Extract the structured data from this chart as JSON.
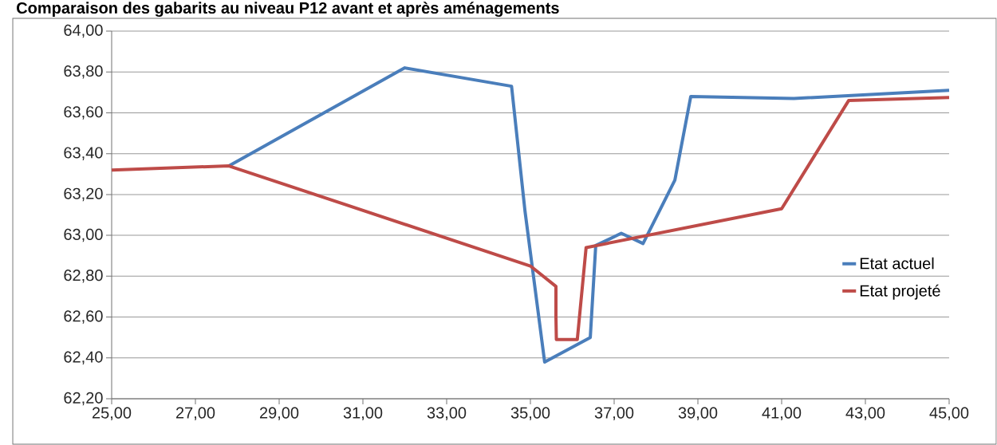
{
  "chart_data": {
    "type": "line",
    "title": "Comparaison des gabarits au niveau P12 avant et après aménagements",
    "xlim": [
      25,
      45
    ],
    "ylim": [
      62.2,
      64.0
    ],
    "xticks": [
      {
        "value": 25,
        "label": "25,00"
      },
      {
        "value": 27,
        "label": "27,00"
      },
      {
        "value": 29,
        "label": "29,00"
      },
      {
        "value": 31,
        "label": "31,00"
      },
      {
        "value": 33,
        "label": "33,00"
      },
      {
        "value": 35,
        "label": "35,00"
      },
      {
        "value": 37,
        "label": "37,00"
      },
      {
        "value": 39,
        "label": "39,00"
      },
      {
        "value": 41,
        "label": "41,00"
      },
      {
        "value": 43,
        "label": "43,00"
      },
      {
        "value": 45,
        "label": "45,00"
      }
    ],
    "yticks": [
      {
        "value": 62.2,
        "label": "62,20"
      },
      {
        "value": 62.4,
        "label": "62,40"
      },
      {
        "value": 62.6,
        "label": "62,60"
      },
      {
        "value": 62.8,
        "label": "62,80"
      },
      {
        "value": 63.0,
        "label": "63,00"
      },
      {
        "value": 63.2,
        "label": "63,20"
      },
      {
        "value": 63.4,
        "label": "63,40"
      },
      {
        "value": 63.6,
        "label": "63,60"
      },
      {
        "value": 63.8,
        "label": "63,80"
      },
      {
        "value": 64.0,
        "label": "64,00"
      }
    ],
    "grid": "y",
    "legend": "right",
    "marker": "none",
    "line_style": "solid",
    "series": [
      {
        "name": "Etat actuel",
        "color": "#4a7ebb",
        "x": [
          27.8,
          32,
          34.55,
          34.87,
          35.34,
          36.43,
          36.56,
          37.17,
          37.69,
          38.45,
          38.83,
          41.29,
          45
        ],
        "values": [
          63.34,
          63.82,
          63.73,
          63.12,
          62.38,
          62.5,
          62.95,
          63.01,
          62.96,
          63.27,
          63.68,
          63.67,
          63.71
        ]
      },
      {
        "name": "Etat projeté",
        "color": "#be4b48",
        "x": [
          25,
          27.8,
          35.0,
          35.61,
          35.61,
          35.62,
          36.12,
          36.33,
          41.0,
          42.6,
          45
        ],
        "values": [
          63.32,
          63.34,
          62.85,
          62.75,
          62.6,
          62.49,
          62.49,
          62.94,
          63.13,
          63.66,
          63.675
        ]
      }
    ]
  }
}
